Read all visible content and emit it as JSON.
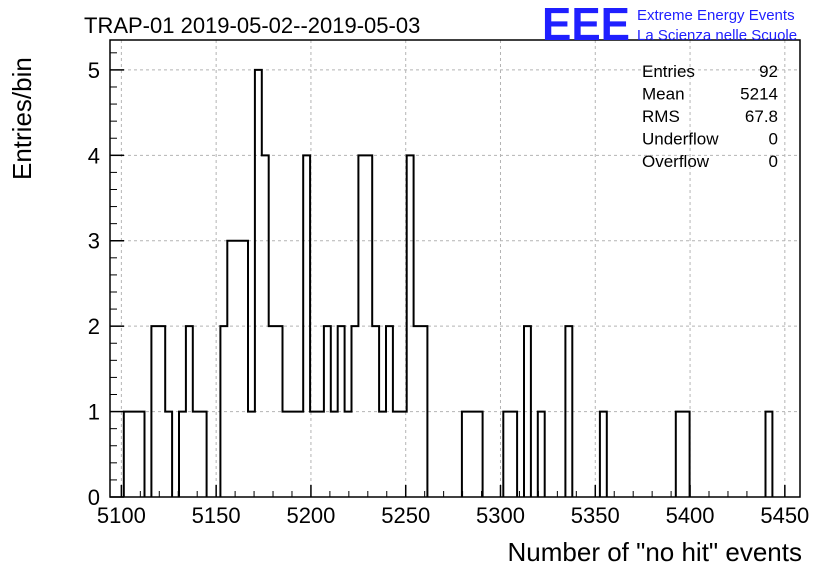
{
  "logo": {
    "mark": "EEE",
    "line1": "Extreme Energy Events",
    "line2": "La Scienza nelle Scuole",
    "color": "#1f1fff"
  },
  "stats": {
    "rows": [
      {
        "label": "Entries",
        "value": "92"
      },
      {
        "label": "Mean",
        "value": "5214"
      },
      {
        "label": "RMS",
        "value": "67.8"
      },
      {
        "label": "Underflow",
        "value": "0"
      },
      {
        "label": "Overflow",
        "value": "0"
      }
    ]
  },
  "chart_data": {
    "type": "histogram",
    "title": "TRAP-01 2019-05-02--2019-05-03",
    "xlabel": "Number of \"no hit\" events",
    "ylabel": "Entries/bin",
    "xlim": [
      5094,
      5458
    ],
    "ylim": [
      0,
      5.35
    ],
    "bin_width": 3.64,
    "grid": true,
    "x_ticks": [
      5100,
      5150,
      5200,
      5250,
      5300,
      5350,
      5400,
      5450
    ],
    "y_ticks": [
      0,
      1,
      2,
      3,
      4,
      5
    ],
    "bins": [
      {
        "x0": 5101.28,
        "y": 1
      },
      {
        "x0": 5104.92,
        "y": 1
      },
      {
        "x0": 5108.56,
        "y": 1
      },
      {
        "x0": 5115.84,
        "y": 2
      },
      {
        "x0": 5119.48,
        "y": 2
      },
      {
        "x0": 5123.12,
        "y": 1
      },
      {
        "x0": 5130.4,
        "y": 1
      },
      {
        "x0": 5134.04,
        "y": 2
      },
      {
        "x0": 5137.68,
        "y": 1
      },
      {
        "x0": 5141.32,
        "y": 1
      },
      {
        "x0": 5152.24,
        "y": 2
      },
      {
        "x0": 5155.88,
        "y": 3
      },
      {
        "x0": 5159.52,
        "y": 3
      },
      {
        "x0": 5163.16,
        "y": 3
      },
      {
        "x0": 5166.8,
        "y": 1
      },
      {
        "x0": 5170.44,
        "y": 5
      },
      {
        "x0": 5174.08,
        "y": 4
      },
      {
        "x0": 5177.72,
        "y": 2
      },
      {
        "x0": 5181.36,
        "y": 2
      },
      {
        "x0": 5185.0,
        "y": 1
      },
      {
        "x0": 5188.64,
        "y": 1
      },
      {
        "x0": 5192.28,
        "y": 1
      },
      {
        "x0": 5195.92,
        "y": 4
      },
      {
        "x0": 5199.56,
        "y": 1
      },
      {
        "x0": 5203.2,
        "y": 1
      },
      {
        "x0": 5206.84,
        "y": 2
      },
      {
        "x0": 5210.48,
        "y": 1
      },
      {
        "x0": 5214.12,
        "y": 2
      },
      {
        "x0": 5217.76,
        "y": 1
      },
      {
        "x0": 5221.4,
        "y": 2
      },
      {
        "x0": 5225.04,
        "y": 4
      },
      {
        "x0": 5228.68,
        "y": 4
      },
      {
        "x0": 5232.32,
        "y": 2
      },
      {
        "x0": 5235.96,
        "y": 1
      },
      {
        "x0": 5239.6,
        "y": 2
      },
      {
        "x0": 5243.24,
        "y": 1
      },
      {
        "x0": 5246.88,
        "y": 1
      },
      {
        "x0": 5250.52,
        "y": 4
      },
      {
        "x0": 5254.16,
        "y": 2
      },
      {
        "x0": 5257.8,
        "y": 2
      },
      {
        "x0": 5279.64,
        "y": 1
      },
      {
        "x0": 5283.28,
        "y": 1
      },
      {
        "x0": 5286.92,
        "y": 1
      },
      {
        "x0": 5301.48,
        "y": 1
      },
      {
        "x0": 5305.12,
        "y": 1
      },
      {
        "x0": 5312.4,
        "y": 2
      },
      {
        "x0": 5319.68,
        "y": 1
      },
      {
        "x0": 5334.24,
        "y": 2
      },
      {
        "x0": 5352.44,
        "y": 1
      },
      {
        "x0": 5392.48,
        "y": 1
      },
      {
        "x0": 5396.12,
        "y": 1
      },
      {
        "x0": 5439.8,
        "y": 1
      }
    ]
  }
}
